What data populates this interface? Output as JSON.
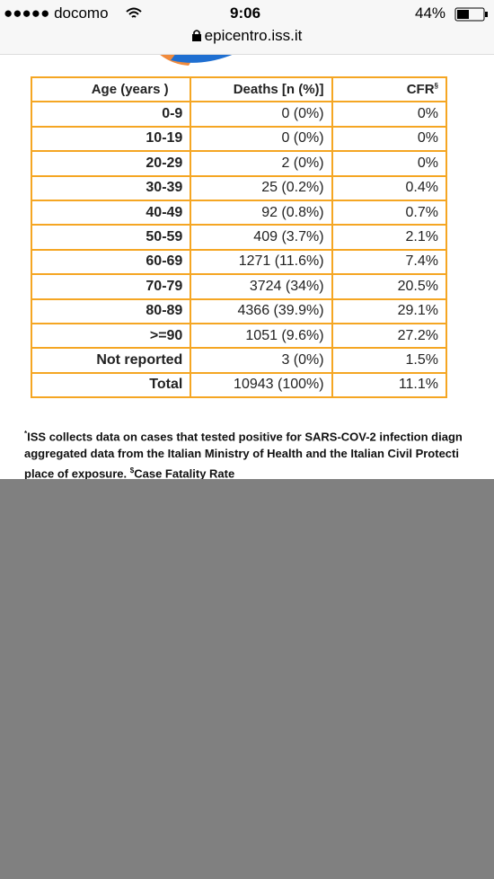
{
  "status_bar": {
    "carrier": "●●●●● docomo",
    "time": "9:06",
    "battery": "44%"
  },
  "address_bar": {
    "url": "epicentro.iss.it"
  },
  "table": {
    "header": [
      "Age (years )",
      "Deaths [n (%)]",
      "CFR"
    ],
    "header_cfr_sup": "§",
    "rows": [
      [
        "0-9",
        "0 (0%)",
        "0%"
      ],
      [
        "10-19",
        "0 (0%)",
        "0%"
      ],
      [
        "20-29",
        "2 (0%)",
        "0%"
      ],
      [
        "30-39",
        "25 (0.2%)",
        "0.4%"
      ],
      [
        "40-49",
        "92 (0.8%)",
        "0.7%"
      ],
      [
        "50-59",
        "409 (3.7%)",
        "2.1%"
      ],
      [
        "60-69",
        "1271 (11.6%)",
        "7.4%"
      ],
      [
        "70-79",
        "3724 (34%)",
        "20.5%"
      ],
      [
        "80-89",
        "4366 (39.9%)",
        "29.1%"
      ],
      [
        ">=90",
        "1051 (9.6%)",
        "27.2%"
      ],
      [
        "Not reported",
        "3 (0%)",
        "1.5%"
      ],
      [
        "Total",
        "10943 (100%)",
        "11.1%"
      ]
    ]
  },
  "footnote": {
    "mark": "*",
    "line1": "ISS collects data on cases that tested positive for SARS-COV-2  infection diagn",
    "line2": "aggregated data from the Italian Ministry of Health and the Italian Civil Protecti",
    "line3_start": "place of exposure. ",
    "line3_mark": "$",
    "line3_end": "Case Fatality Rate"
  }
}
